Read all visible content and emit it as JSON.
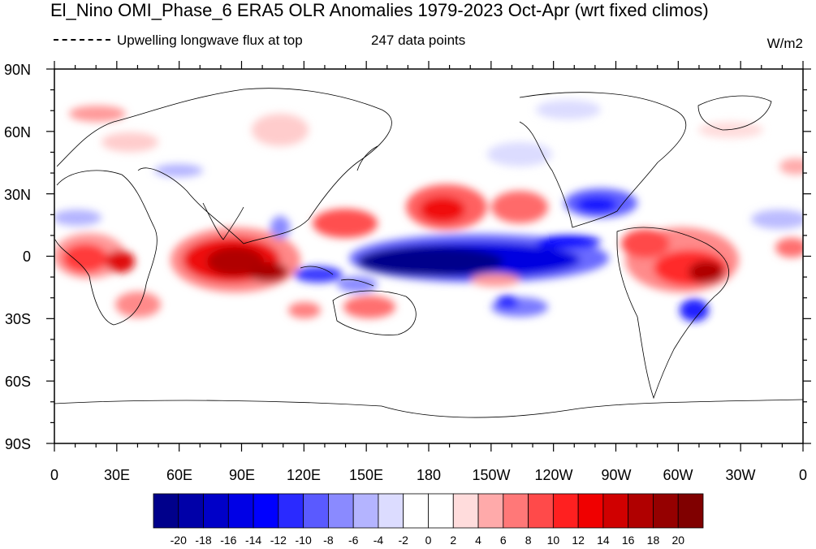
{
  "title": "El_Nino OMI_Phase_6 ERA5 OLR Anomalies 1979-2023 Oct-Apr (wrt fixed climos)",
  "legend_text": "Upwelling longwave flux at top",
  "points_text": "247 data points",
  "units": "W/m2",
  "map": {
    "lon_labels": [
      "0",
      "30E",
      "60E",
      "90E",
      "120E",
      "150E",
      "180",
      "150W",
      "120W",
      "90W",
      "60W",
      "30W",
      "0"
    ],
    "lat_labels": [
      "90N",
      "60N",
      "30N",
      "0",
      "30S",
      "60S",
      "90S"
    ]
  },
  "colorbar": {
    "labels": [
      "-20",
      "-18",
      "-16",
      "-14",
      "-12",
      "-10",
      "-8",
      "-6",
      "-4",
      "-2",
      "0",
      "2",
      "4",
      "6",
      "8",
      "10",
      "12",
      "14",
      "16",
      "18",
      "20"
    ],
    "colors": [
      "#00008b",
      "#0000a8",
      "#0000c8",
      "#0000e6",
      "#0000ff",
      "#2a2aff",
      "#5a5aff",
      "#8a8aff",
      "#b4b4ff",
      "#dcdcff",
      "#ffffff",
      "#ffffff",
      "#ffdcdc",
      "#ffaaaa",
      "#ff7878",
      "#ff4a4a",
      "#ff2020",
      "#f00000",
      "#d00000",
      "#b00000",
      "#950000",
      "#800000"
    ]
  }
}
